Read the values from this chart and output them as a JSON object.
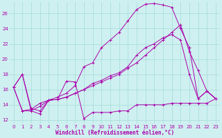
{
  "background_color": "#cff0f0",
  "grid_color": "#aadddd",
  "line_color": "#aa00aa",
  "xlabel": "Windchill (Refroidissement éolien,°C)",
  "xlim": [
    -0.5,
    23.5
  ],
  "ylim": [
    11.5,
    27.5
  ],
  "ytick_vals": [
    12,
    14,
    16,
    18,
    20,
    22,
    24,
    26
  ],
  "xtick_vals": [
    0,
    1,
    2,
    3,
    4,
    5,
    6,
    7,
    8,
    9,
    10,
    11,
    12,
    13,
    14,
    15,
    16,
    17,
    18,
    19,
    20,
    21,
    22,
    23
  ],
  "line1_y": [
    16.3,
    18.0,
    13.2,
    12.8,
    14.6,
    14.7,
    17.1,
    17.0,
    12.2,
    13.0,
    13.0,
    13.0,
    13.2,
    13.2,
    14.0,
    14.0,
    14.0,
    14.0,
    14.2,
    14.2,
    14.2,
    14.2,
    14.2,
    14.8
  ],
  "line2_y": [
    16.3,
    18.0,
    13.5,
    13.2,
    14.6,
    15.0,
    15.5,
    16.5,
    19.0,
    19.5,
    21.5,
    22.5,
    23.5,
    25.0,
    26.5,
    27.2,
    27.3,
    27.1,
    26.8,
    24.0,
    21.5,
    14.8,
    15.8,
    14.8
  ],
  "line3_y": [
    16.3,
    13.2,
    13.2,
    13.8,
    14.6,
    14.7,
    15.0,
    15.5,
    16.0,
    16.5,
    17.0,
    17.5,
    18.0,
    18.8,
    19.5,
    20.5,
    21.5,
    22.5,
    23.5,
    24.5,
    21.0,
    18.5,
    15.8,
    14.8
  ],
  "line4_y": [
    16.3,
    13.2,
    13.4,
    14.2,
    14.6,
    14.7,
    15.0,
    15.5,
    16.0,
    16.8,
    17.2,
    17.8,
    18.2,
    19.0,
    20.5,
    21.5,
    22.0,
    22.8,
    23.2,
    22.5,
    18.0,
    14.8,
    15.8,
    14.8
  ]
}
